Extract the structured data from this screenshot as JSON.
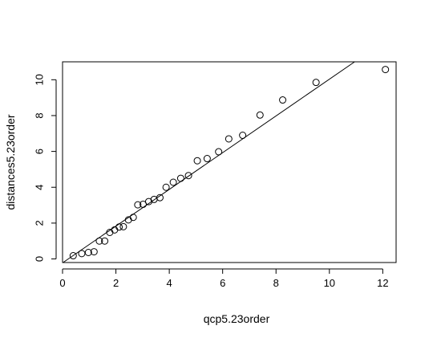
{
  "chart_data": {
    "type": "scatter",
    "xlabel": "qcp5.23order",
    "ylabel": "distances5.23order",
    "xlim": [
      0,
      12.5
    ],
    "ylim": [
      -0.2,
      11
    ],
    "x_ticks": [
      0,
      2,
      4,
      6,
      8,
      10,
      12
    ],
    "y_ticks": [
      0,
      2,
      4,
      6,
      8,
      10
    ],
    "grid": false,
    "legend": "none",
    "series": [
      {
        "points": [
          [
            0.4,
            0.18
          ],
          [
            0.72,
            0.3
          ],
          [
            0.97,
            0.36
          ],
          [
            1.18,
            0.4
          ],
          [
            1.38,
            1.0
          ],
          [
            1.58,
            1.0
          ],
          [
            1.77,
            1.48
          ],
          [
            1.95,
            1.62
          ],
          [
            2.12,
            1.78
          ],
          [
            2.28,
            1.8
          ],
          [
            2.47,
            2.18
          ],
          [
            2.65,
            2.32
          ],
          [
            2.82,
            3.02
          ],
          [
            3.02,
            3.05
          ],
          [
            3.23,
            3.2
          ],
          [
            3.43,
            3.32
          ],
          [
            3.65,
            3.42
          ],
          [
            3.88,
            4.0
          ],
          [
            4.15,
            4.28
          ],
          [
            4.43,
            4.5
          ],
          [
            4.72,
            4.65
          ],
          [
            5.05,
            5.48
          ],
          [
            5.42,
            5.6
          ],
          [
            5.85,
            5.98
          ],
          [
            6.23,
            6.7
          ],
          [
            6.75,
            6.9
          ],
          [
            7.4,
            8.03
          ],
          [
            8.25,
            8.87
          ],
          [
            9.5,
            9.85
          ],
          [
            12.1,
            10.57
          ]
        ],
        "marker": "open-circle"
      }
    ],
    "reference_line": {
      "intercept": -0.22,
      "slope": 1.025
    }
  }
}
